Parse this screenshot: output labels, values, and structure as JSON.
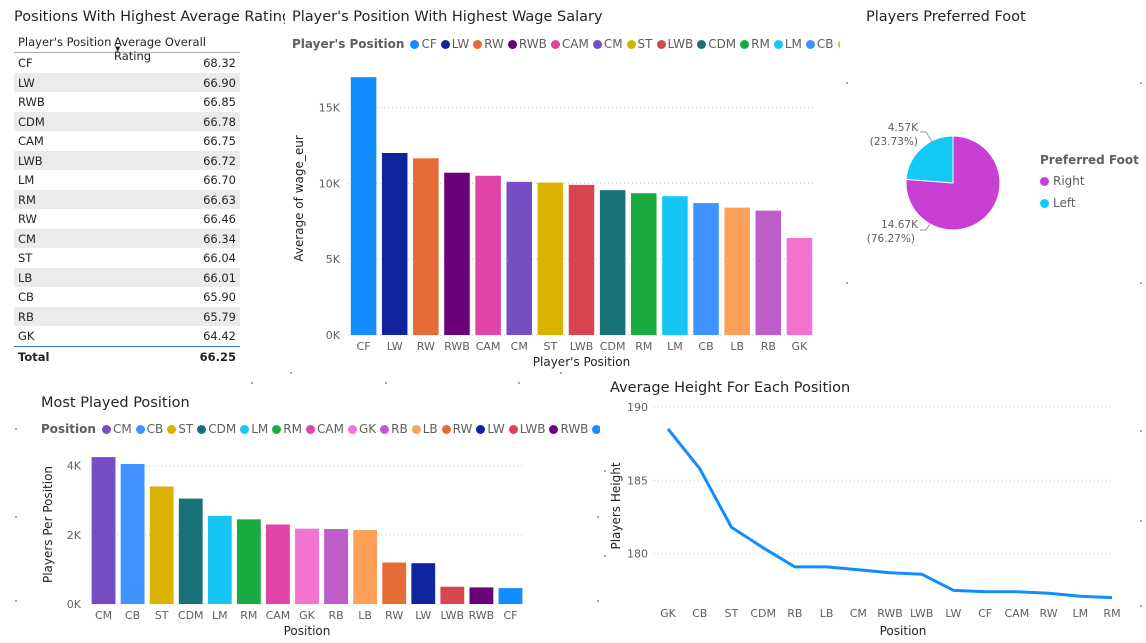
{
  "table": {
    "title": "Positions With Highest Average Rating",
    "col1": "Player's Position",
    "col2": "Average Overall Rating",
    "sort_icon": "sort-descending-icon",
    "rows": [
      {
        "pos": "CF",
        "val": "68.32"
      },
      {
        "pos": "LW",
        "val": "66.90"
      },
      {
        "pos": "RWB",
        "val": "66.85"
      },
      {
        "pos": "CDM",
        "val": "66.78"
      },
      {
        "pos": "CAM",
        "val": "66.75"
      },
      {
        "pos": "LWB",
        "val": "66.72"
      },
      {
        "pos": "LM",
        "val": "66.70"
      },
      {
        "pos": "RM",
        "val": "66.63"
      },
      {
        "pos": "RW",
        "val": "66.46"
      },
      {
        "pos": "CM",
        "val": "66.34"
      },
      {
        "pos": "ST",
        "val": "66.04"
      },
      {
        "pos": "LB",
        "val": "66.01"
      },
      {
        "pos": "CB",
        "val": "65.90"
      },
      {
        "pos": "RB",
        "val": "65.79"
      },
      {
        "pos": "GK",
        "val": "64.42"
      }
    ],
    "total_label": "Total",
    "total_value": "66.25"
  },
  "wage": {
    "title": "Player's Position With Highest Wage Salary",
    "legend_title": "Player's Position",
    "more_icon": "chevron-right-icon"
  },
  "foot": {
    "title": "Players Preferred Foot",
    "legend_title": "Preferred Foot",
    "right_label": "14.67K",
    "right_pct": "(76.27%)",
    "left_label": "4.57K",
    "left_pct": "(23.73%)"
  },
  "played": {
    "title": "Most Played Position",
    "legend_title": "Position",
    "more_icon": "chevron-right-icon"
  },
  "height": {
    "title": "Average Height For Each Position"
  },
  "chart_data": [
    {
      "type": "bar",
      "title": "Player's Position With Highest Wage Salary",
      "xlabel": "Player's Position",
      "ylabel": "Average of wage_eur",
      "ylim": [
        0,
        18000
      ],
      "yticks": [
        "0K",
        "5K",
        "10K",
        "15K"
      ],
      "grid": true,
      "categories": [
        "CF",
        "LW",
        "RW",
        "RWB",
        "CAM",
        "CM",
        "ST",
        "LWB",
        "CDM",
        "RM",
        "LM",
        "CB",
        "LB",
        "RB",
        "GK"
      ],
      "values": [
        17000,
        12000,
        11650,
        10700,
        10500,
        10100,
        10050,
        9900,
        9550,
        9350,
        9150,
        8700,
        8400,
        8200,
        6400
      ],
      "colors": [
        "#118DFF",
        "#12239E",
        "#E66C37",
        "#6B007B",
        "#E044A7",
        "#744EC2",
        "#D9B300",
        "#D64550",
        "#197278",
        "#1AAB40",
        "#15C6F4",
        "#4092FF",
        "#FFA058",
        "#BE5DC9",
        "#F472D0"
      ]
    },
    {
      "type": "pie",
      "title": "Players Preferred Foot",
      "legend": "Preferred Foot",
      "labels": [
        "Right",
        "Left"
      ],
      "values": [
        14670,
        4570
      ],
      "percents": [
        76.27,
        23.73
      ],
      "colors": [
        "#C93FD6",
        "#12C9F5"
      ]
    },
    {
      "type": "bar",
      "title": "Most Played Position",
      "xlabel": "Position",
      "ylabel": "Players Per Position",
      "ylim": [
        0,
        4600
      ],
      "yticks": [
        "0K",
        "2K",
        "4K"
      ],
      "grid": true,
      "categories": [
        "CM",
        "CB",
        "ST",
        "CDM",
        "LM",
        "RM",
        "CAM",
        "GK",
        "RB",
        "LB",
        "RW",
        "LW",
        "LWB",
        "RWB",
        "CF"
      ],
      "values": [
        4250,
        4050,
        3400,
        3050,
        2550,
        2450,
        2300,
        2180,
        2170,
        2140,
        1200,
        1180,
        500,
        480,
        460
      ],
      "colors": [
        "#744EC2",
        "#4092FF",
        "#D9B300",
        "#197278",
        "#15C6F4",
        "#1AAB40",
        "#E044A7",
        "#F472D0",
        "#BE5DC9",
        "#FFA058",
        "#E66C37",
        "#12239E",
        "#D64550",
        "#6B007B",
        "#118DFF"
      ]
    },
    {
      "type": "line",
      "title": "Average Height For Each Position",
      "xlabel": "Position",
      "ylabel": "Players Height",
      "ylim": [
        176.5,
        190
      ],
      "yticks": [
        "180",
        "185",
        "190"
      ],
      "grid": true,
      "categories": [
        "GK",
        "CB",
        "ST",
        "CDM",
        "RB",
        "LB",
        "CM",
        "RWB",
        "LWB",
        "LW",
        "CF",
        "CAM",
        "RW",
        "LM",
        "RM"
      ],
      "values": [
        188.5,
        185.8,
        181.8,
        180.4,
        179.1,
        179.1,
        178.9,
        178.7,
        178.6,
        177.5,
        177.4,
        177.4,
        177.3,
        177.1,
        177.0
      ],
      "color": "#118DFF"
    }
  ]
}
